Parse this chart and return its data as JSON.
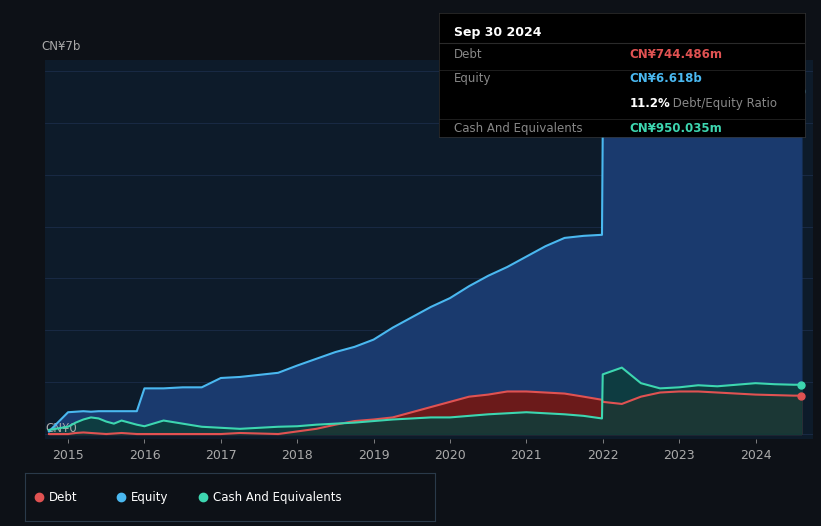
{
  "bg_color": "#0d1117",
  "plot_bg_color": "#0d1b2a",
  "grid_color": "#1e3050",
  "y_label_top": "CN¥7b",
  "y_label_bottom": "CN¥0",
  "x_ticks": [
    2015,
    2016,
    2017,
    2018,
    2019,
    2020,
    2021,
    2022,
    2023,
    2024
  ],
  "debt_color": "#e05252",
  "equity_color": "#4ab8f0",
  "cash_color": "#3dd6b0",
  "debt_fill": "#6b1a1a",
  "equity_fill": "#1a3a6e",
  "cash_fill": "#0d3d3a",
  "legend_border_color": "#2a3a4a",
  "tooltip_title": "Sep 30 2024",
  "tooltip_debt_label": "Debt",
  "tooltip_debt_value": "CN¥744.486m",
  "tooltip_equity_label": "Equity",
  "tooltip_equity_value": "CN¥6.618b",
  "tooltip_ratio": "11.2%",
  "tooltip_ratio_text": " Debt/Equity Ratio",
  "tooltip_cash_label": "Cash And Equivalents",
  "tooltip_cash_value": "CN¥950.035m",
  "years": [
    2014.75,
    2015.0,
    2015.1,
    2015.2,
    2015.3,
    2015.4,
    2015.5,
    2015.6,
    2015.7,
    2015.8,
    2015.9,
    2016.0,
    2016.25,
    2016.5,
    2016.75,
    2017.0,
    2017.25,
    2017.5,
    2017.75,
    2018.0,
    2018.25,
    2018.5,
    2018.75,
    2019.0,
    2019.25,
    2019.5,
    2019.75,
    2020.0,
    2020.25,
    2020.5,
    2020.75,
    2021.0,
    2021.25,
    2021.5,
    2021.75,
    2021.99,
    2022.0,
    2022.25,
    2022.5,
    2022.75,
    2023.0,
    2023.25,
    2023.5,
    2023.75,
    2024.0,
    2024.25,
    2024.5,
    2024.6
  ],
  "equity": [
    0.05,
    0.42,
    0.43,
    0.44,
    0.43,
    0.44,
    0.44,
    0.44,
    0.44,
    0.44,
    0.44,
    0.88,
    0.88,
    0.9,
    0.9,
    1.08,
    1.1,
    1.14,
    1.18,
    1.32,
    1.45,
    1.58,
    1.68,
    1.82,
    2.05,
    2.25,
    2.45,
    2.62,
    2.85,
    3.05,
    3.22,
    3.42,
    3.62,
    3.78,
    3.82,
    3.84,
    5.85,
    6.2,
    6.38,
    6.42,
    6.5,
    6.52,
    6.5,
    6.52,
    6.55,
    6.58,
    6.62,
    6.62
  ],
  "debt": [
    0.0,
    0.0,
    0.02,
    0.03,
    0.02,
    0.01,
    0.0,
    0.01,
    0.02,
    0.01,
    0.0,
    0.0,
    0.0,
    0.0,
    0.0,
    0.0,
    0.02,
    0.01,
    0.0,
    0.05,
    0.1,
    0.18,
    0.25,
    0.28,
    0.32,
    0.42,
    0.52,
    0.62,
    0.72,
    0.76,
    0.82,
    0.82,
    0.8,
    0.78,
    0.72,
    0.66,
    0.62,
    0.58,
    0.72,
    0.8,
    0.82,
    0.82,
    0.8,
    0.78,
    0.76,
    0.75,
    0.74,
    0.74
  ],
  "cash": [
    0.08,
    0.14,
    0.22,
    0.28,
    0.32,
    0.3,
    0.24,
    0.2,
    0.26,
    0.22,
    0.18,
    0.15,
    0.26,
    0.2,
    0.14,
    0.12,
    0.1,
    0.12,
    0.14,
    0.15,
    0.18,
    0.2,
    0.22,
    0.25,
    0.28,
    0.3,
    0.32,
    0.32,
    0.35,
    0.38,
    0.4,
    0.42,
    0.4,
    0.38,
    0.35,
    0.3,
    1.15,
    1.28,
    0.98,
    0.88,
    0.9,
    0.94,
    0.92,
    0.95,
    0.98,
    0.96,
    0.95,
    0.95
  ]
}
